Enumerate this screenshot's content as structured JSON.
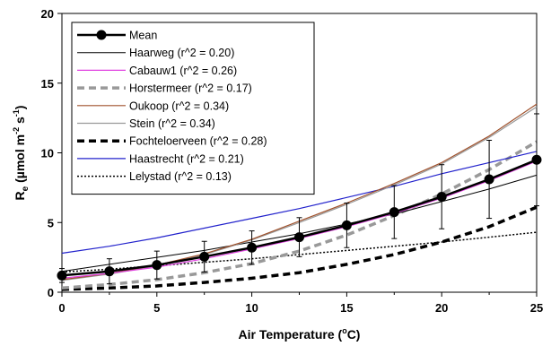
{
  "chart_data": {
    "type": "line",
    "xlabel": "Air Temperature (°C)",
    "xlabel_parts": {
      "pre": "Air Temperature (",
      "sup": "o",
      "post": "C)"
    },
    "ylabel_parts": {
      "main": "R",
      "sub": "e",
      "mid": " (µmol m",
      "sup1": "-2",
      "mid2": " s",
      "sup2": "-1",
      "end": ")"
    },
    "xlim": [
      0,
      25
    ],
    "ylim": [
      0,
      20
    ],
    "x_ticks": [
      0,
      5,
      10,
      15,
      20,
      25
    ],
    "y_ticks": [
      0,
      5,
      10,
      15,
      20
    ],
    "grid": false,
    "legend_position": "top-left",
    "x": [
      0,
      2.5,
      5,
      7.5,
      10,
      12.5,
      15,
      17.5,
      20,
      22.5,
      25
    ],
    "series": [
      {
        "name": "Mean",
        "color": "#000000",
        "style": "solid-thick-markers",
        "values": [
          1.2,
          1.5,
          1.95,
          2.55,
          3.2,
          3.95,
          4.8,
          5.75,
          6.85,
          8.1,
          9.5
        ],
        "error": [
          0.5,
          0.9,
          1.0,
          1.1,
          1.2,
          1.4,
          1.6,
          1.9,
          2.3,
          2.8,
          3.3
        ]
      },
      {
        "name": "Haarweg (r^2 = 0.20)",
        "color": "#000000",
        "style": "solid-thin",
        "values": [
          1.5,
          2.0,
          2.5,
          3.0,
          3.6,
          4.2,
          4.9,
          5.6,
          6.5,
          7.4,
          8.4
        ]
      },
      {
        "name": "Cabauw1 (r^2 = 0.26)",
        "color": "#e040e0",
        "style": "solid",
        "values": [
          1.0,
          1.35,
          1.8,
          2.4,
          3.1,
          3.85,
          4.7,
          5.65,
          6.75,
          8.0,
          9.4
        ]
      },
      {
        "name": "Horstermeer (r^2 = 0.17)",
        "color": "#999999",
        "style": "dashed-gray",
        "values": [
          0.3,
          0.55,
          0.9,
          1.4,
          2.05,
          2.95,
          4.1,
          5.5,
          7.05,
          8.8,
          10.8
        ]
      },
      {
        "name": "Oukoop (r^2 = 0.34)",
        "color": "#a0522d",
        "style": "solid",
        "values": [
          0.9,
          1.35,
          1.95,
          2.75,
          3.8,
          5.1,
          6.4,
          7.8,
          9.3,
          11.2,
          13.5
        ]
      },
      {
        "name": "Stein (r^2 = 0.34)",
        "color": "#999999",
        "style": "solid",
        "values": [
          0.85,
          1.3,
          1.9,
          2.7,
          3.75,
          5.0,
          6.3,
          7.7,
          9.2,
          11.1,
          13.3
        ]
      },
      {
        "name": "Fochteloerveen (r^2 = 0.28)",
        "color": "#000000",
        "style": "dashed-thick",
        "values": [
          0.2,
          0.3,
          0.45,
          0.7,
          1.0,
          1.4,
          2.0,
          2.7,
          3.6,
          4.7,
          6.1
        ]
      },
      {
        "name": "Haastrecht (r^2 = 0.21)",
        "color": "#2222cc",
        "style": "solid",
        "values": [
          2.8,
          3.3,
          3.9,
          4.6,
          5.3,
          6.0,
          6.8,
          7.6,
          8.5,
          9.3,
          10.1
        ]
      },
      {
        "name": "Lelystad (r^2 = 0.13)",
        "color": "#000000",
        "style": "dotted",
        "values": [
          1.45,
          1.65,
          1.9,
          2.15,
          2.4,
          2.7,
          3.0,
          3.3,
          3.6,
          3.95,
          4.3
        ]
      }
    ]
  }
}
